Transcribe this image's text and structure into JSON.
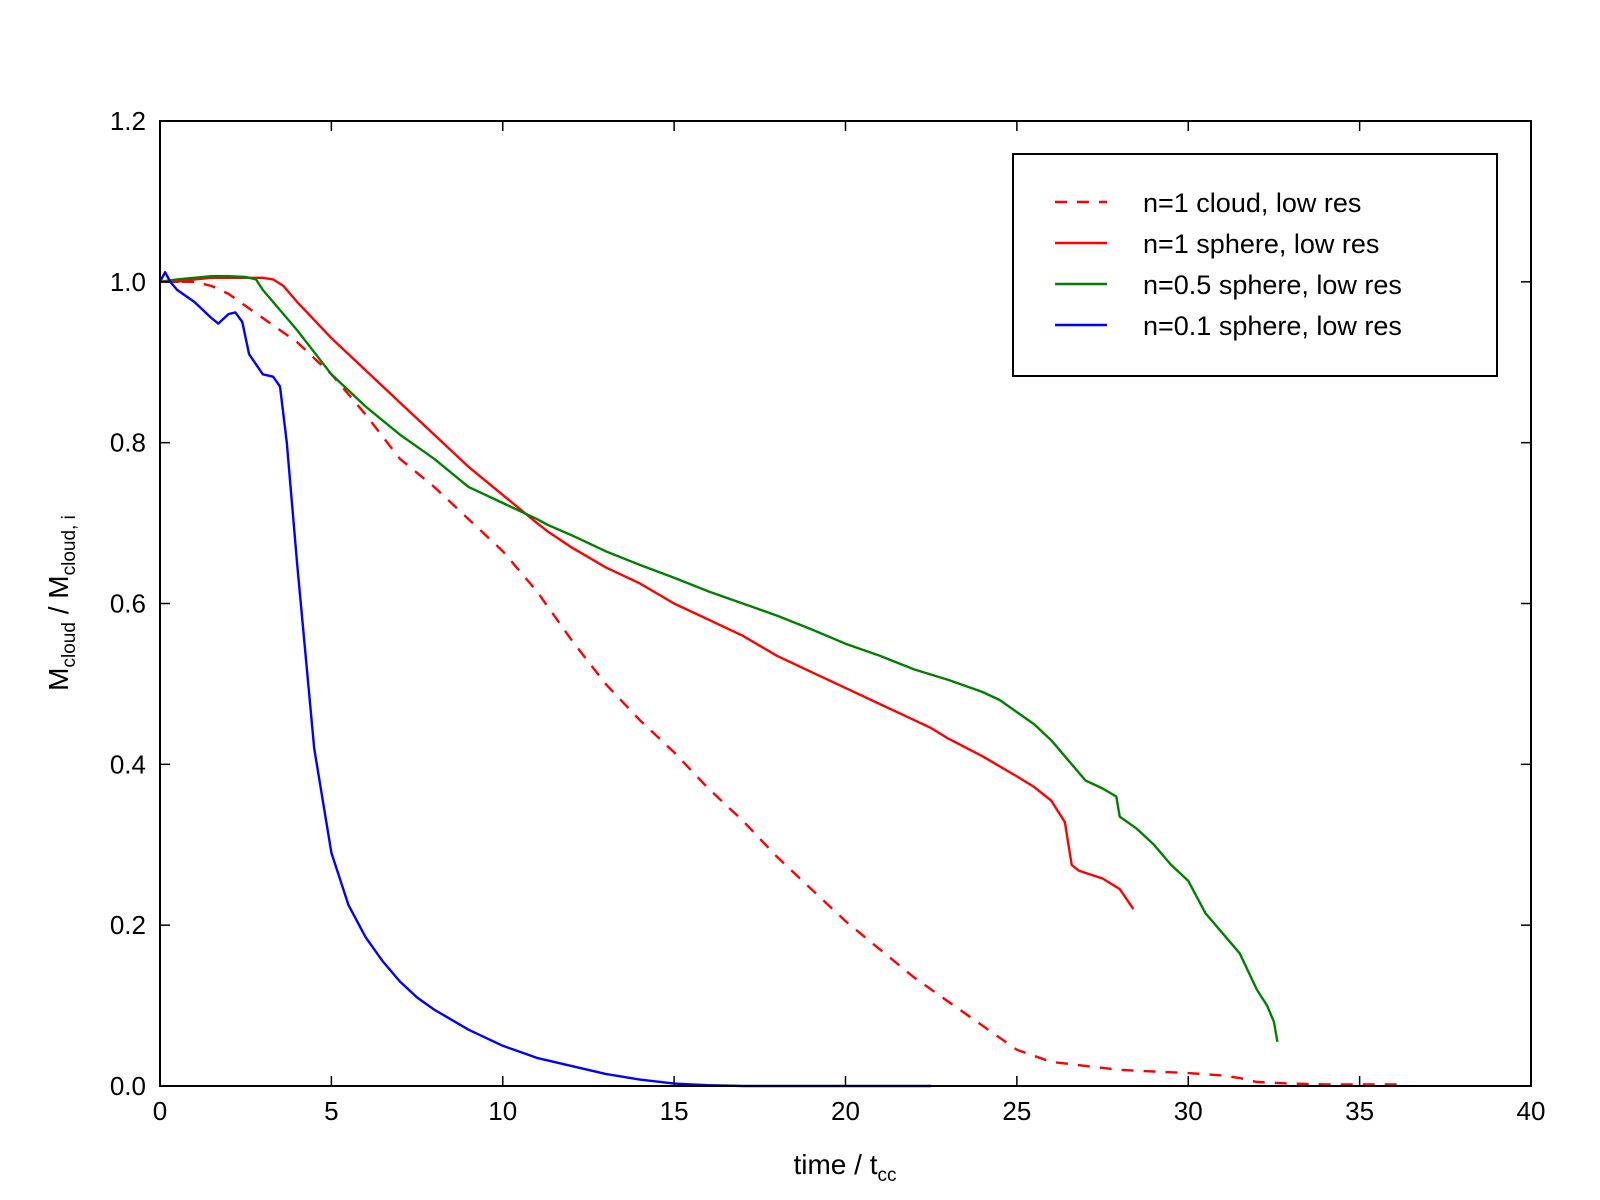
{
  "chart_data": {
    "type": "line",
    "xlabel_main": "time / t",
    "xlabel_sub": "cc",
    "ylabel_main1": "M",
    "ylabel_sub1": "cloud",
    "ylabel_mid": " / M",
    "ylabel_sub2": "cloud, i",
    "xlim": [
      0,
      40
    ],
    "ylim": [
      0,
      1.2
    ],
    "xticks": [
      0,
      5,
      10,
      15,
      20,
      25,
      30,
      35,
      40
    ],
    "xtick_labels": [
      "0",
      "5",
      "10",
      "15",
      "20",
      "25",
      "30",
      "35",
      "40"
    ],
    "yticks": [
      0,
      0.2,
      0.4,
      0.6,
      0.8,
      1.0,
      1.2
    ],
    "ytick_labels": [
      "0.0",
      "0.2",
      "0.4",
      "0.6",
      "0.8",
      "1.0",
      "1.2"
    ],
    "grid": false,
    "legend_position": "top-right",
    "series": [
      {
        "name": "n=1 cloud, low res",
        "color": "#ff0000",
        "style": "dashed",
        "x": [
          0,
          0.5,
          1.0,
          1.5,
          2.0,
          2.5,
          3.0,
          4.0,
          5.0,
          6.0,
          7.0,
          8.0,
          9.0,
          10.0,
          11.0,
          12.0,
          13.0,
          14.0,
          15.0,
          16.0,
          17.0,
          18.0,
          19.0,
          20.0,
          21.0,
          22.0,
          23.0,
          24.0,
          25.0,
          26.0,
          27.0,
          28.0,
          29.0,
          30.0,
          31.0,
          31.5,
          32.0,
          33.0,
          34.0,
          35.0,
          36.0,
          36.3
        ],
        "y": [
          1.0,
          1.0,
          1.0,
          0.995,
          0.985,
          0.97,
          0.955,
          0.925,
          0.885,
          0.835,
          0.78,
          0.745,
          0.705,
          0.665,
          0.615,
          0.555,
          0.5,
          0.455,
          0.415,
          0.37,
          0.33,
          0.285,
          0.245,
          0.205,
          0.17,
          0.135,
          0.105,
          0.075,
          0.045,
          0.03,
          0.025,
          0.02,
          0.018,
          0.016,
          0.013,
          0.01,
          0.005,
          0.003,
          0.002,
          0.002,
          0.002,
          0.002
        ]
      },
      {
        "name": "n=1 sphere, low res",
        "color": "#ff0000",
        "style": "solid",
        "x": [
          0,
          0.5,
          1.0,
          1.5,
          2.0,
          2.5,
          3.0,
          3.3,
          3.6,
          4.0,
          5.0,
          6.0,
          7.0,
          8.0,
          9.0,
          10.0,
          11.0,
          11.3,
          12.0,
          13.0,
          14.0,
          15.0,
          16.0,
          17.0,
          18.0,
          19.0,
          20.0,
          21.0,
          22.0,
          22.5,
          23.0,
          24.0,
          25.0,
          25.5,
          26.0,
          26.4,
          26.6,
          26.8,
          27.0,
          27.5,
          28.0,
          28.4
        ],
        "y": [
          1.0,
          1.0,
          1.003,
          1.005,
          1.005,
          1.005,
          1.005,
          1.003,
          0.995,
          0.975,
          0.93,
          0.89,
          0.85,
          0.81,
          0.77,
          0.735,
          0.7,
          0.69,
          0.67,
          0.645,
          0.625,
          0.6,
          0.58,
          0.56,
          0.535,
          0.515,
          0.495,
          0.475,
          0.455,
          0.445,
          0.432,
          0.41,
          0.385,
          0.372,
          0.355,
          0.328,
          0.275,
          0.268,
          0.265,
          0.258,
          0.245,
          0.22
        ]
      },
      {
        "name": "n=0.5 sphere, low res",
        "color": "#008000",
        "style": "solid",
        "x": [
          0,
          0.5,
          1.0,
          1.5,
          2.0,
          2.5,
          2.8,
          3.0,
          4.0,
          5.0,
          6.0,
          7.0,
          8.0,
          9.0,
          10.0,
          11.0,
          11.3,
          12.0,
          13.0,
          14.0,
          15.0,
          16.0,
          17.0,
          18.0,
          19.0,
          20.0,
          21.0,
          22.0,
          23.0,
          24.0,
          24.5,
          25.0,
          25.5,
          26.0,
          26.5,
          27.0,
          27.5,
          27.9,
          28.0,
          28.5,
          29.0,
          29.5,
          30.0,
          30.5,
          31.0,
          31.5,
          32.0,
          32.3,
          32.5,
          32.6
        ],
        "y": [
          1.0,
          1.003,
          1.005,
          1.007,
          1.007,
          1.006,
          1.003,
          0.99,
          0.94,
          0.885,
          0.845,
          0.81,
          0.78,
          0.745,
          0.725,
          0.705,
          0.698,
          0.685,
          0.665,
          0.648,
          0.632,
          0.615,
          0.6,
          0.585,
          0.568,
          0.55,
          0.535,
          0.518,
          0.505,
          0.49,
          0.48,
          0.465,
          0.45,
          0.43,
          0.405,
          0.38,
          0.37,
          0.36,
          0.335,
          0.32,
          0.3,
          0.275,
          0.255,
          0.215,
          0.19,
          0.165,
          0.12,
          0.1,
          0.08,
          0.055
        ]
      },
      {
        "name": "n=0.1 sphere, low res",
        "color": "#0000ff",
        "style": "solid",
        "x": [
          0,
          0.15,
          0.3,
          0.5,
          1.0,
          1.5,
          1.7,
          2.0,
          2.2,
          2.4,
          2.6,
          3.0,
          3.3,
          3.5,
          3.7,
          4.0,
          4.5,
          5.0,
          5.5,
          6.0,
          6.5,
          7.0,
          7.5,
          8.0,
          9.0,
          10.0,
          11.0,
          12.0,
          13.0,
          14.0,
          15.0,
          15.5,
          16.0,
          17.0,
          18.0,
          19.0,
          20.0,
          21.0,
          22.0,
          22.5
        ],
        "y": [
          1.0,
          1.012,
          1.0,
          0.99,
          0.975,
          0.955,
          0.948,
          0.96,
          0.962,
          0.95,
          0.91,
          0.885,
          0.882,
          0.87,
          0.8,
          0.65,
          0.42,
          0.29,
          0.225,
          0.185,
          0.155,
          0.13,
          0.11,
          0.095,
          0.07,
          0.05,
          0.035,
          0.025,
          0.015,
          0.008,
          0.003,
          0.002,
          0.001,
          0.0,
          0.0,
          0.0,
          0.0,
          0.0,
          0.0,
          0.0
        ]
      }
    ]
  }
}
